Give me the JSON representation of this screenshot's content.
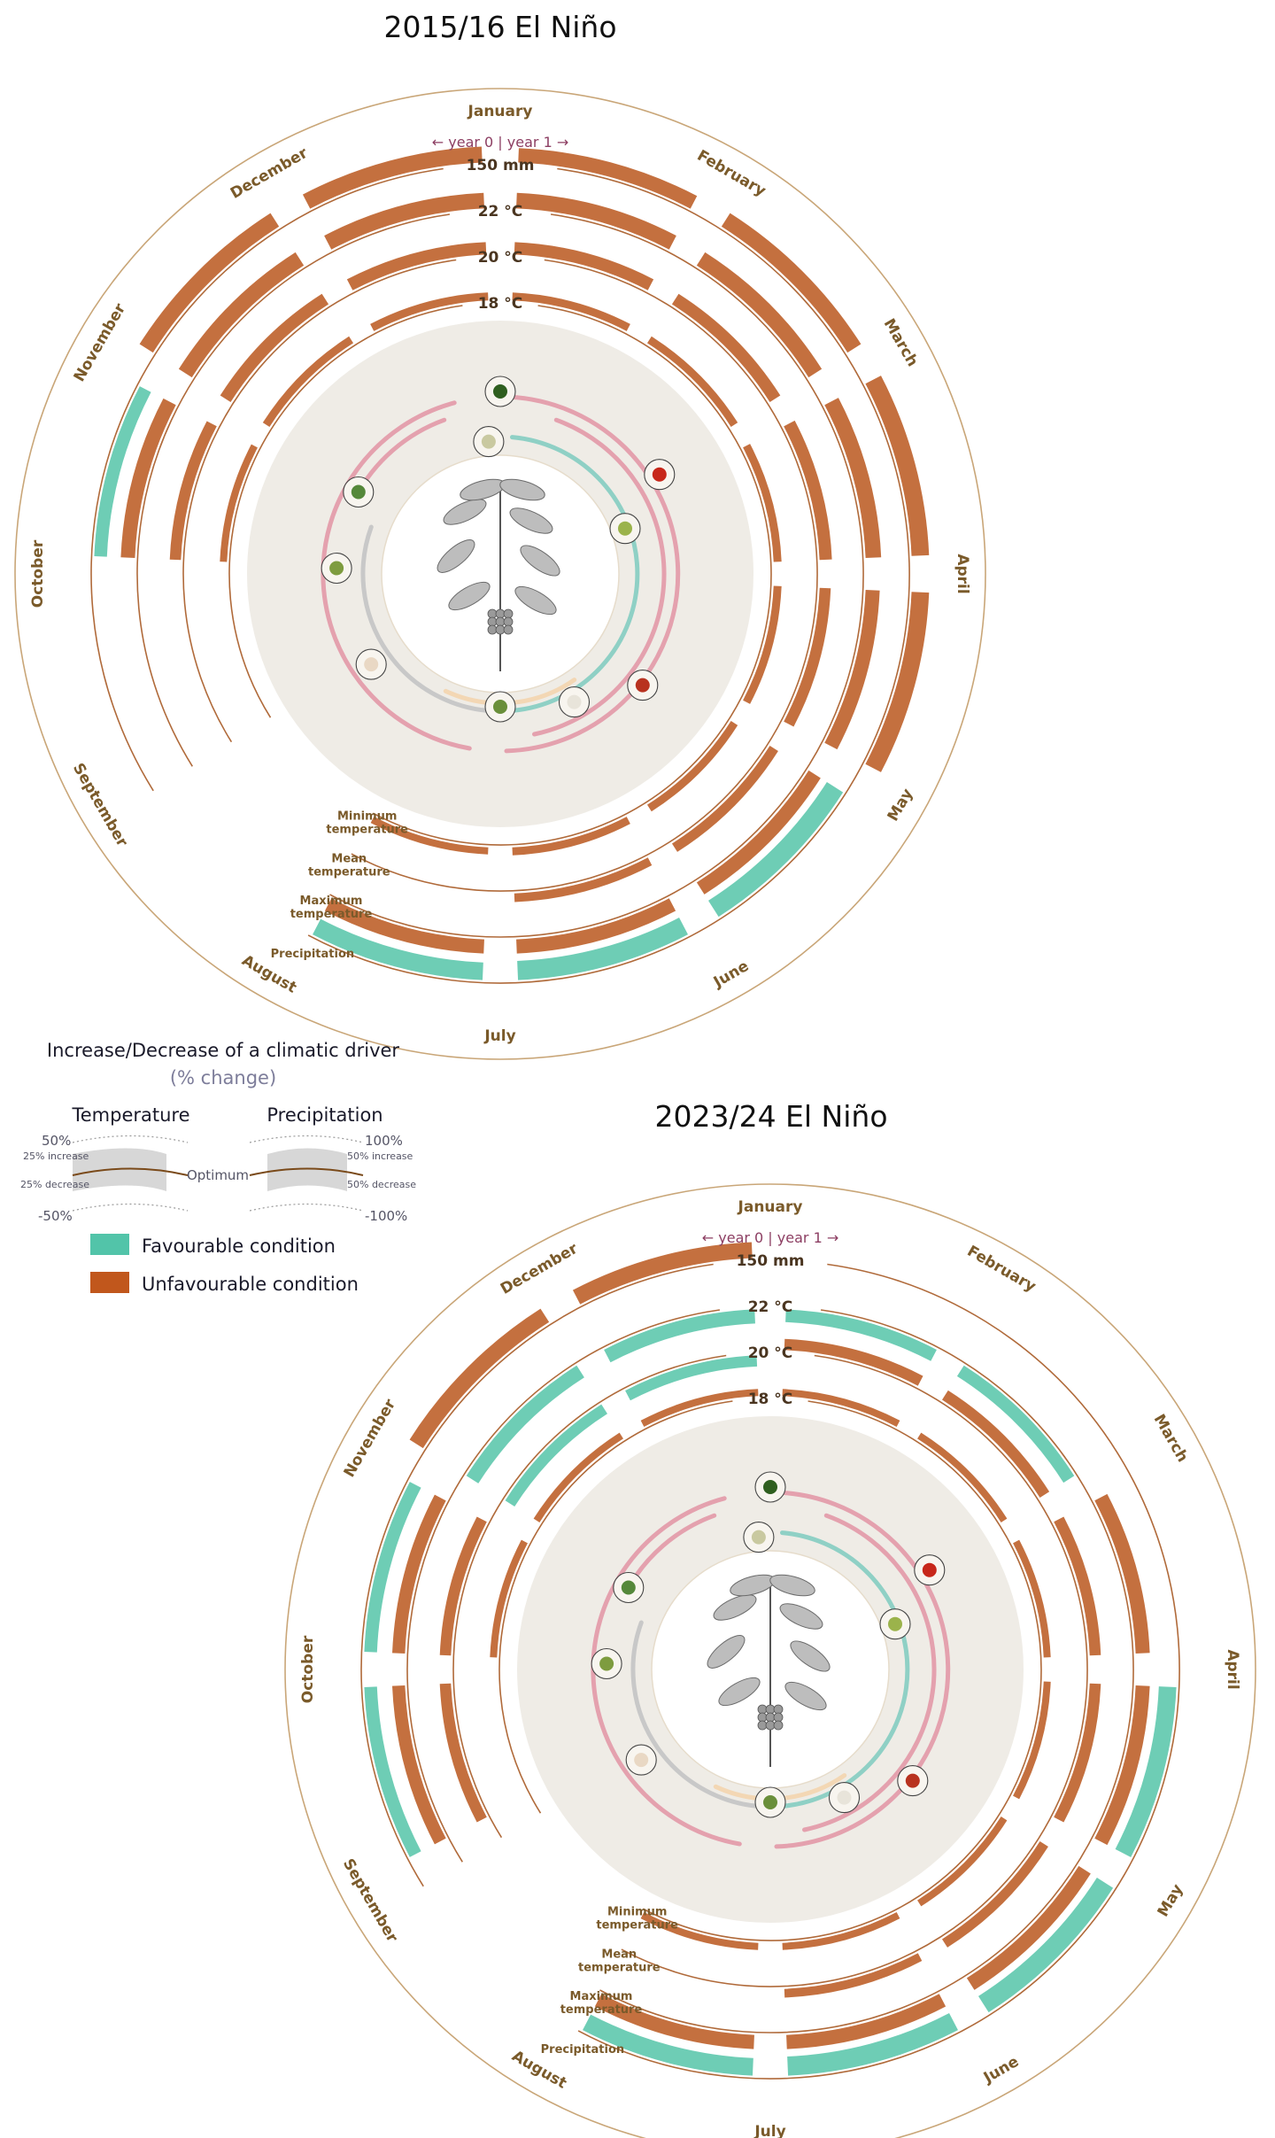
{
  "colors": {
    "favourable": "#6ecdb5",
    "unfavourable": "#c4703f",
    "frame": "#c9a678",
    "guide": "#b06a3a",
    "month_text": "#7a5a2a",
    "inner_disk": "#efece6",
    "pink": "#e4a1ae",
    "teal": "#8fd0c5",
    "grey": "#c8c8c8",
    "peach": "#f3d7b4"
  },
  "months": [
    "January",
    "February",
    "March",
    "April",
    "May",
    "June",
    "July",
    "August",
    "September",
    "October",
    "November",
    "December"
  ],
  "ring_labels": {
    "precipitation": "150 mm",
    "max_temp": "22 °C",
    "mean_temp": "20 °C",
    "min_temp": "18 °C"
  },
  "year_marker": "← year 0 | year 1 →",
  "variable_labels": {
    "minimum": [
      "Minimum",
      "temperature"
    ],
    "mean": [
      "Mean",
      "temperature"
    ],
    "maximum": [
      "Maximum",
      "temperature"
    ],
    "precipitation": "Precipitation"
  },
  "legend": {
    "title": "Increase/Decrease of a climatic driver",
    "subtitle": "(% change)",
    "temperature": {
      "heading": "Temperature",
      "top": "50%",
      "increase": "25% increase",
      "decrease": "25% decrease",
      "bottom": "-50%"
    },
    "precipitation": {
      "heading": "Precipitation",
      "top": "100%",
      "increase": "50% increase",
      "decrease": "50% decrease",
      "bottom": "-100%"
    },
    "optimum": "Optimum",
    "favourable": "Favourable condition",
    "unfavourable": "Unfavourable condition"
  },
  "chart_data": [
    {
      "type": "radial",
      "title": "2015/16 El Niño",
      "months": [
        "Jan",
        "Feb",
        "Mar",
        "Apr",
        "May",
        "Jun",
        "Jul",
        "Aug",
        "Sep",
        "Oct",
        "Nov",
        "Dec"
      ],
      "series": [
        {
          "name": "Precipitation",
          "reference": "150 mm",
          "condition": [
            "unfavourable",
            "unfavourable",
            "unfavourable",
            "unfavourable",
            "favourable",
            "favourable",
            "favourable",
            "none",
            "none",
            "favourable",
            "unfavourable",
            "unfavourable"
          ],
          "magnitude": [
            0.4,
            0.5,
            0.6,
            0.6,
            0.7,
            0.7,
            0.6,
            0,
            0,
            0.3,
            0.5,
            0.5
          ]
        },
        {
          "name": "Maximum temperature",
          "reference": "22 °C",
          "condition": [
            "unfavourable",
            "unfavourable",
            "unfavourable",
            "unfavourable",
            "unfavourable",
            "unfavourable",
            "unfavourable",
            "none",
            "none",
            "unfavourable",
            "unfavourable",
            "unfavourable"
          ],
          "magnitude": [
            0.6,
            0.6,
            0.6,
            0.5,
            0.5,
            0.5,
            0.5,
            0,
            0,
            0.5,
            0.6,
            0.6
          ]
        },
        {
          "name": "Mean temperature",
          "reference": "20 °C",
          "condition": [
            "unfavourable",
            "unfavourable",
            "unfavourable",
            "unfavourable",
            "unfavourable",
            "unfavourable",
            "none",
            "none",
            "none",
            "unfavourable",
            "unfavourable",
            "unfavourable"
          ],
          "magnitude": [
            0.5,
            0.5,
            0.5,
            0.4,
            0.3,
            0.2,
            0,
            0,
            0,
            0.4,
            0.5,
            0.5
          ]
        },
        {
          "name": "Minimum temperature",
          "reference": "18 °C",
          "condition": [
            "unfavourable",
            "unfavourable",
            "unfavourable",
            "unfavourable",
            "unfavourable",
            "unfavourable",
            "unfavourable",
            "none",
            "none",
            "unfavourable",
            "unfavourable",
            "unfavourable"
          ],
          "magnitude": [
            0.4,
            0.4,
            0.4,
            0.4,
            0.4,
            0.4,
            0.3,
            0,
            0,
            0.3,
            0.4,
            0.4
          ]
        }
      ]
    },
    {
      "type": "radial",
      "title": "2023/24 El Niño",
      "months": [
        "Jan",
        "Feb",
        "Mar",
        "Apr",
        "May",
        "Jun",
        "Jul",
        "Aug",
        "Sep",
        "Oct",
        "Nov",
        "Dec"
      ],
      "series": [
        {
          "name": "Precipitation",
          "reference": "150 mm",
          "condition": [
            "none",
            "none",
            "none",
            "favourable",
            "favourable",
            "favourable",
            "favourable",
            "none",
            "favourable",
            "favourable",
            "unfavourable",
            "unfavourable"
          ],
          "magnitude": [
            0,
            0,
            0,
            0.6,
            0.7,
            0.7,
            0.6,
            0,
            0.3,
            0.3,
            0.5,
            0.5
          ]
        },
        {
          "name": "Maximum temperature",
          "reference": "22 °C",
          "condition": [
            "favourable",
            "favourable",
            "unfavourable",
            "unfavourable",
            "unfavourable",
            "unfavourable",
            "unfavourable",
            "none",
            "unfavourable",
            "unfavourable",
            "favourable",
            "favourable"
          ],
          "magnitude": [
            0.4,
            0.4,
            0.5,
            0.5,
            0.5,
            0.5,
            0.5,
            0,
            0.4,
            0.4,
            0.5,
            0.5
          ]
        },
        {
          "name": "Mean temperature",
          "reference": "20 °C",
          "condition": [
            "unfavourable",
            "unfavourable",
            "unfavourable",
            "unfavourable",
            "unfavourable",
            "unfavourable",
            "none",
            "none",
            "unfavourable",
            "unfavourable",
            "favourable",
            "favourable"
          ],
          "magnitude": [
            0.4,
            0.4,
            0.4,
            0.4,
            0.3,
            0.2,
            0,
            0,
            0.4,
            0.4,
            0.4,
            0.4
          ]
        },
        {
          "name": "Minimum temperature",
          "reference": "18 °C",
          "condition": [
            "unfavourable",
            "unfavourable",
            "unfavourable",
            "unfavourable",
            "unfavourable",
            "unfavourable",
            "unfavourable",
            "none",
            "none",
            "unfavourable",
            "unfavourable",
            "unfavourable"
          ],
          "magnitude": [
            0.3,
            0.3,
            0.3,
            0.3,
            0.3,
            0.3,
            0.3,
            0,
            0,
            0.3,
            0.3,
            0.3
          ]
        }
      ]
    }
  ]
}
